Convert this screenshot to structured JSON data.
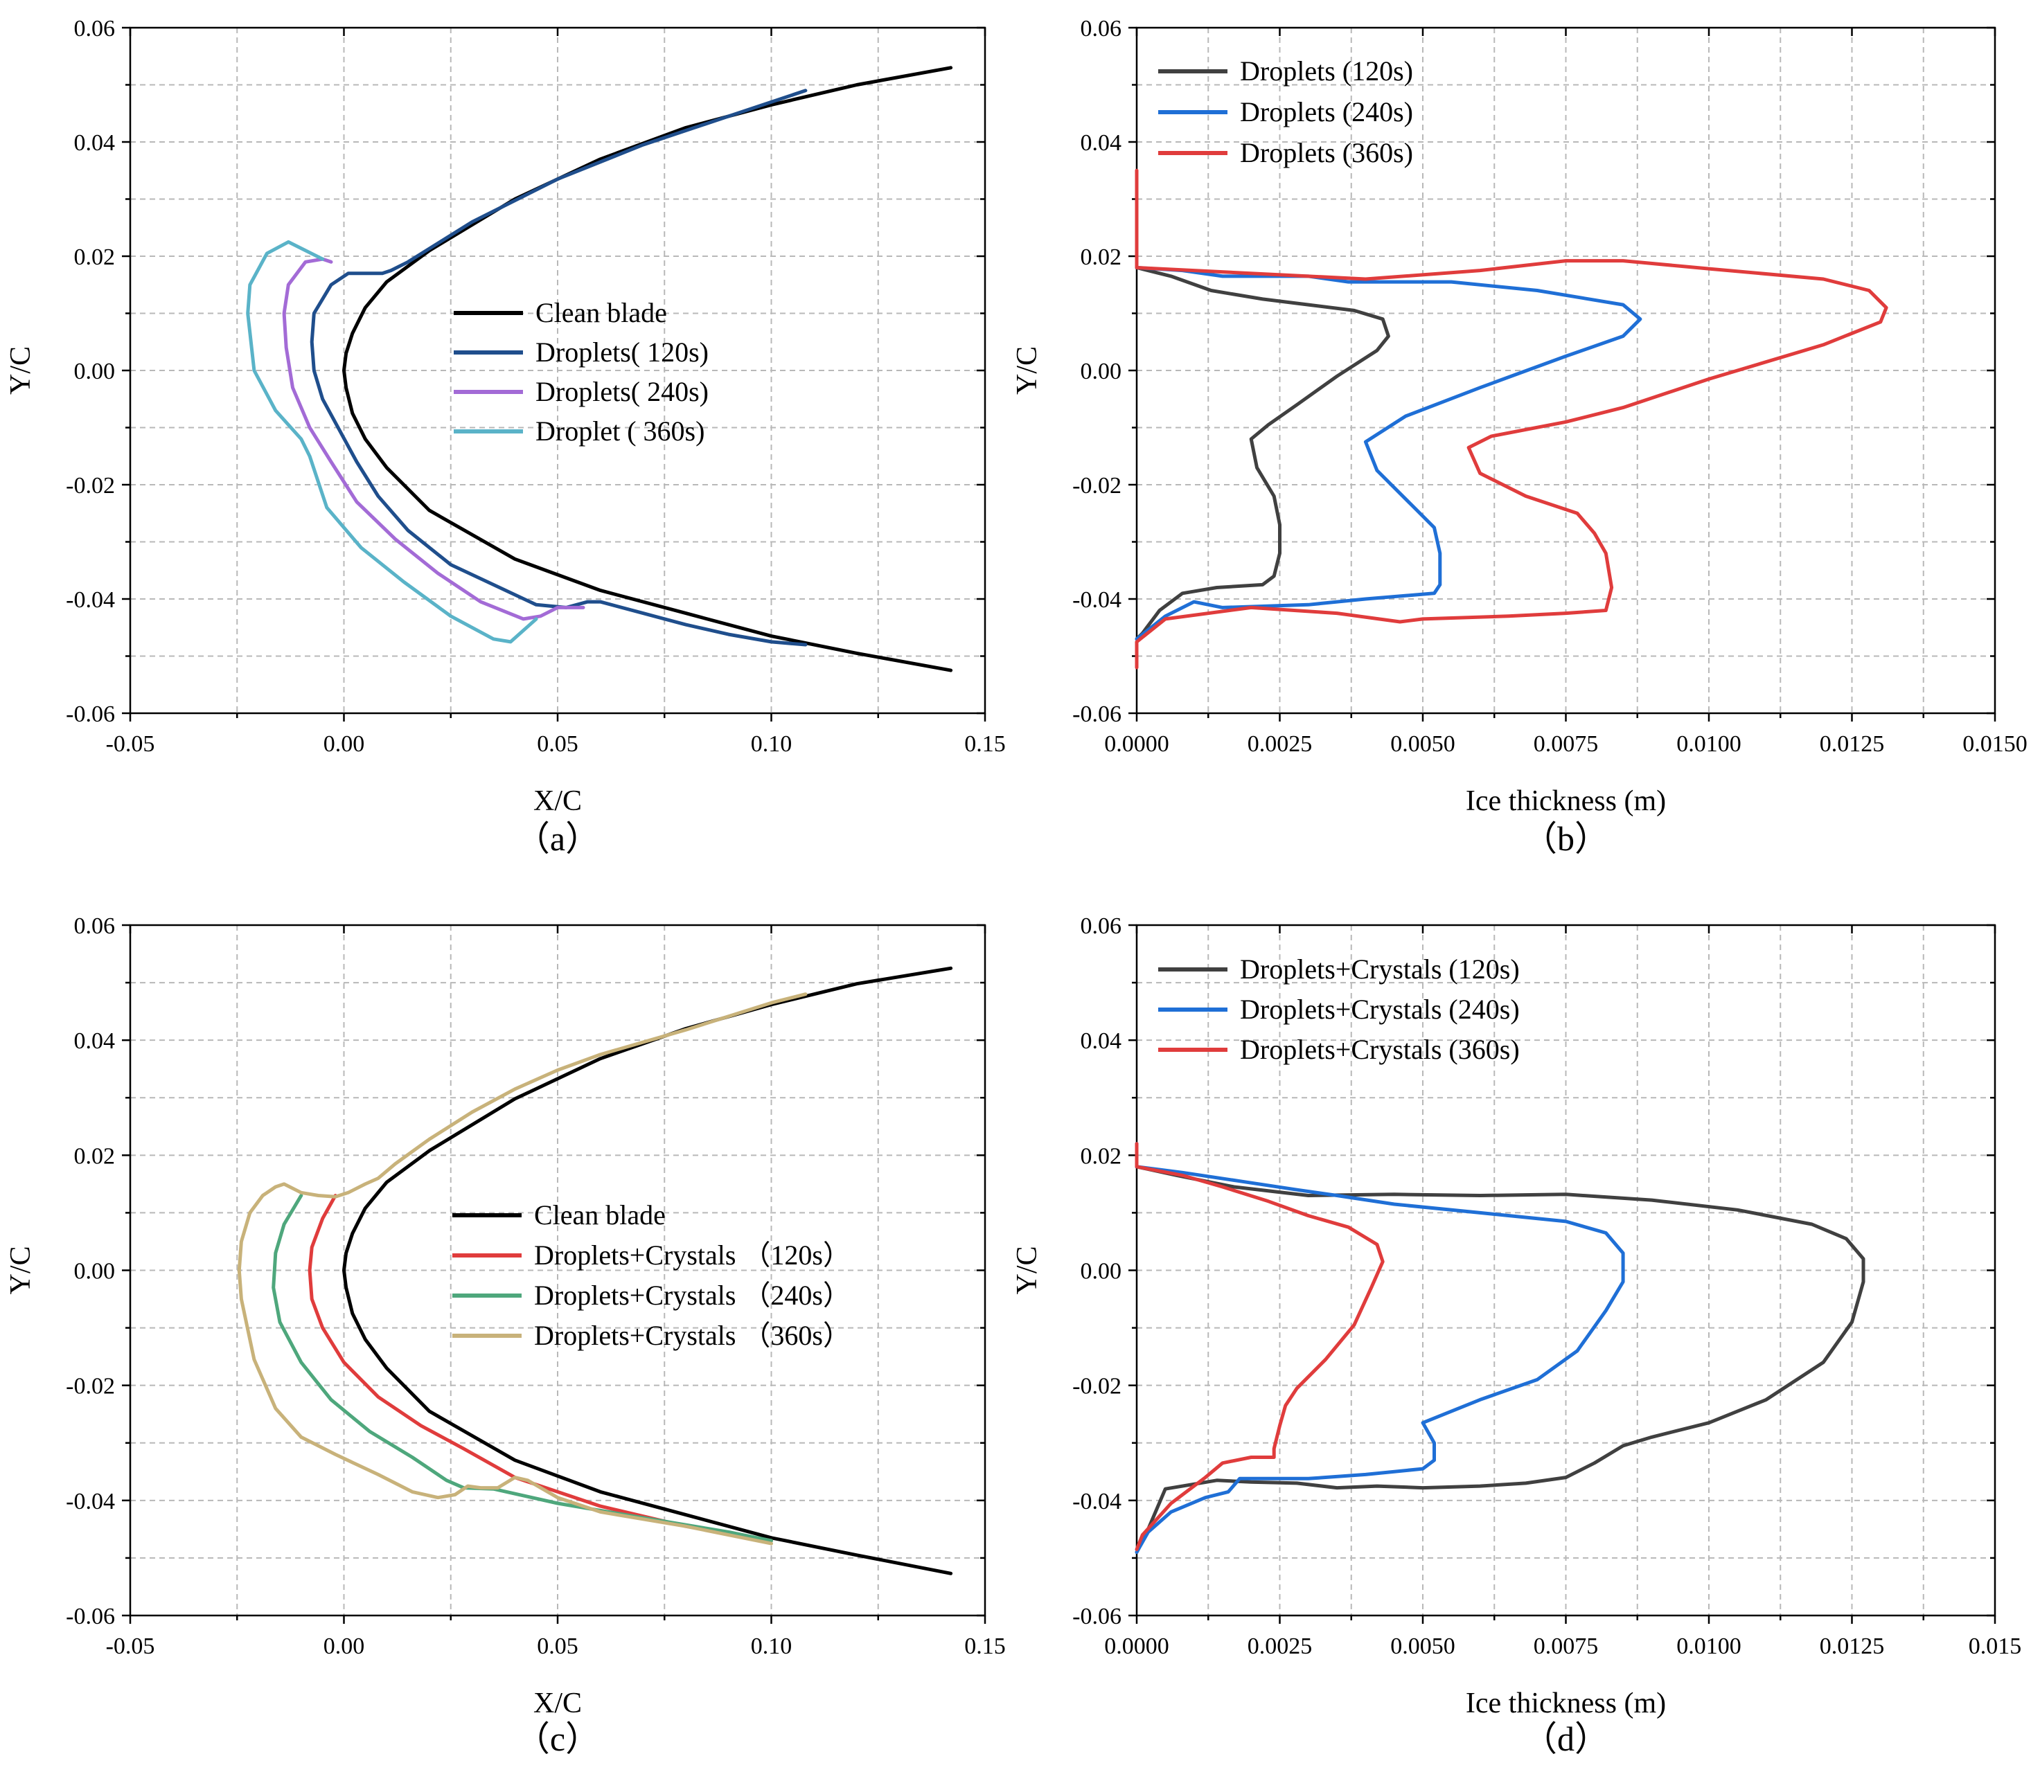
{
  "chart_data": [
    {
      "panel": "(a)",
      "type": "line",
      "xlabel": "X/C",
      "ylabel": "Y/C",
      "xlim": [
        -0.05,
        0.15
      ],
      "ylim": [
        -0.06,
        0.06
      ],
      "xticks": [
        -0.05,
        0.0,
        0.05,
        0.1,
        0.15
      ],
      "xtick_labels": [
        "-0.05",
        "0.00",
        "0.05",
        "0.10",
        "0.15"
      ],
      "yticks": [
        -0.06,
        -0.04,
        -0.02,
        0.0,
        0.02,
        0.04,
        0.06
      ],
      "ytick_labels": [
        "-0.06",
        "-0.04",
        "-0.02",
        "0.00",
        "0.02",
        "0.04",
        "0.06"
      ],
      "grid": true,
      "legend_position": "center",
      "series": [
        {
          "name": "Clean blade",
          "color": "#000000",
          "x": [
            0.142,
            0.12,
            0.1,
            0.08,
            0.06,
            0.04,
            0.02,
            0.01,
            0.005,
            0.002,
            0.0005,
            0.0,
            0.0005,
            0.002,
            0.005,
            0.01,
            0.02,
            0.04,
            0.06,
            0.08,
            0.1,
            0.12,
            0.142
          ],
          "y": [
            0.053,
            0.05,
            0.0465,
            0.0425,
            0.037,
            0.03,
            0.021,
            0.0155,
            0.011,
            0.0065,
            0.003,
            0.0,
            -0.003,
            -0.0075,
            -0.012,
            -0.017,
            -0.0245,
            -0.033,
            -0.0385,
            -0.0425,
            -0.0465,
            -0.0495,
            -0.0525
          ]
        },
        {
          "name": "Droplets(   120s)",
          "color": "#1f4e8c",
          "x": [
            0.108,
            0.09,
            0.07,
            0.05,
            0.03,
            0.015,
            0.011,
            0.009,
            0.005,
            0.001,
            -0.003,
            -0.007,
            -0.0075,
            -0.007,
            -0.005,
            -0.001,
            0.003,
            0.008,
            0.015,
            0.025,
            0.035,
            0.045,
            0.052,
            0.057,
            0.06,
            0.07,
            0.08,
            0.09,
            0.1,
            0.108
          ],
          "y": [
            0.049,
            0.0445,
            0.0395,
            0.0335,
            0.026,
            0.019,
            0.0175,
            0.017,
            0.017,
            0.017,
            0.015,
            0.01,
            0.005,
            0.0,
            -0.005,
            -0.0105,
            -0.016,
            -0.022,
            -0.028,
            -0.034,
            -0.0375,
            -0.041,
            -0.0415,
            -0.0405,
            -0.0405,
            -0.0425,
            -0.0445,
            -0.0462,
            -0.0475,
            -0.048
          ]
        },
        {
          "name": "Droplets(   240s)",
          "color": "#a36bd6",
          "x": [
            -0.003,
            -0.005,
            -0.009,
            -0.013,
            -0.014,
            -0.0135,
            -0.012,
            -0.008,
            -0.003,
            0.003,
            0.012,
            0.022,
            0.032,
            0.042,
            0.046,
            0.05,
            0.056
          ],
          "y": [
            0.019,
            0.0195,
            0.019,
            0.015,
            0.01,
            0.004,
            -0.003,
            -0.01,
            -0.016,
            -0.023,
            -0.0295,
            -0.0355,
            -0.0405,
            -0.0435,
            -0.043,
            -0.0415,
            -0.0415
          ]
        },
        {
          "name": "Droplet (   360s)",
          "color": "#5ab3c8",
          "x": [
            -0.005,
            -0.009,
            -0.013,
            -0.018,
            -0.022,
            -0.0225,
            -0.021,
            -0.016,
            -0.01,
            -0.008,
            -0.004,
            0.004,
            0.014,
            0.025,
            0.035,
            0.039,
            0.042,
            0.045
          ],
          "y": [
            0.0195,
            0.021,
            0.0225,
            0.0205,
            0.015,
            0.01,
            0.0,
            -0.007,
            -0.012,
            -0.015,
            -0.024,
            -0.031,
            -0.037,
            -0.043,
            -0.047,
            -0.0475,
            -0.0455,
            -0.0435
          ]
        }
      ]
    },
    {
      "panel": "(b)",
      "type": "line",
      "xlabel": "Ice thickness (m)",
      "ylabel": "Y/C",
      "xlim": [
        0.0,
        0.015
      ],
      "ylim": [
        -0.06,
        0.06
      ],
      "xticks": [
        0.0,
        0.0025,
        0.005,
        0.0075,
        0.01,
        0.0125,
        0.015
      ],
      "xtick_labels": [
        "0.0000",
        "0.0025",
        "0.0050",
        "0.0075",
        "0.0100",
        "0.0125",
        "0.0150"
      ],
      "yticks": [
        -0.06,
        -0.04,
        -0.02,
        0.0,
        0.02,
        0.04,
        0.06
      ],
      "ytick_labels": [
        "-0.06",
        "-0.04",
        "-0.02",
        "0.00",
        "0.02",
        "0.04",
        "0.06"
      ],
      "grid": true,
      "legend_position": "top-left",
      "series": [
        {
          "name": "Droplets (120s)",
          "color": "#404040",
          "x": [
            0.0,
            0.0,
            0.0006,
            0.0013,
            0.0022,
            0.003,
            0.0038,
            0.0043,
            0.0044,
            0.0042,
            0.0035,
            0.0028,
            0.0023,
            0.002,
            0.0021,
            0.0024,
            0.0025,
            0.0025,
            0.0024,
            0.0022,
            0.0014,
            0.0008,
            0.0004,
            0.0001,
            0.0
          ],
          "y": [
            0.024,
            0.018,
            0.0165,
            0.014,
            0.0125,
            0.0115,
            0.0105,
            0.009,
            0.006,
            0.0035,
            -0.001,
            -0.006,
            -0.0095,
            -0.012,
            -0.017,
            -0.022,
            -0.027,
            -0.032,
            -0.036,
            -0.0375,
            -0.038,
            -0.039,
            -0.042,
            -0.046,
            -0.047
          ]
        },
        {
          "name": "Droplets (240s)",
          "color": "#1f6fd6",
          "x": [
            0.0,
            0.0,
            0.0008,
            0.0015,
            0.003,
            0.0037,
            0.0055,
            0.007,
            0.0085,
            0.0088,
            0.0085,
            0.0075,
            0.006,
            0.0047,
            0.004,
            0.0042,
            0.0048,
            0.0052,
            0.0053,
            0.0053,
            0.0052,
            0.004,
            0.003,
            0.0015,
            0.001,
            0.0005,
            0.0
          ],
          "y": [
            0.024,
            0.018,
            0.0175,
            0.0165,
            0.0165,
            0.0155,
            0.0155,
            0.014,
            0.0115,
            0.009,
            0.006,
            0.0025,
            -0.003,
            -0.008,
            -0.0125,
            -0.0175,
            -0.0235,
            -0.0275,
            -0.032,
            -0.0375,
            -0.039,
            -0.04,
            -0.041,
            -0.0415,
            -0.0405,
            -0.043,
            -0.047
          ]
        },
        {
          "name": "Droplets (360s)",
          "color": "#e03c3c",
          "x": [
            0.0,
            0.0,
            0.004,
            0.006,
            0.0075,
            0.0085,
            0.01,
            0.012,
            0.0128,
            0.0131,
            0.013,
            0.012,
            0.01,
            0.0085,
            0.0075,
            0.0062,
            0.0058,
            0.006,
            0.0068,
            0.0077,
            0.008,
            0.0082,
            0.0083,
            0.0082,
            0.0075,
            0.0065,
            0.005,
            0.0046,
            0.0035,
            0.002,
            0.0005,
            0.0,
            0.0
          ],
          "y": [
            0.035,
            0.018,
            0.016,
            0.0175,
            0.0192,
            0.0192,
            0.0178,
            0.016,
            0.014,
            0.011,
            0.0085,
            0.0045,
            -0.0015,
            -0.0065,
            -0.009,
            -0.0115,
            -0.0135,
            -0.018,
            -0.022,
            -0.025,
            -0.0285,
            -0.032,
            -0.038,
            -0.042,
            -0.0425,
            -0.043,
            -0.0435,
            -0.044,
            -0.0425,
            -0.0415,
            -0.0435,
            -0.0475,
            -0.052
          ]
        }
      ]
    },
    {
      "panel": "(c)",
      "type": "line",
      "xlabel": "X/C",
      "ylabel": "Y/C",
      "xlim": [
        -0.05,
        0.15
      ],
      "ylim": [
        -0.06,
        0.06
      ],
      "xticks": [
        -0.05,
        0.0,
        0.05,
        0.1,
        0.15
      ],
      "xtick_labels": [
        "-0.05",
        "0.00",
        "0.05",
        "0.10",
        "0.15"
      ],
      "yticks": [
        -0.06,
        -0.04,
        -0.02,
        0.0,
        0.02,
        0.04,
        0.06
      ],
      "ytick_labels": [
        "-0.06",
        "-0.04",
        "-0.02",
        "0.00",
        "0.02",
        "0.04",
        "0.06"
      ],
      "grid": true,
      "legend_position": "center",
      "series": [
        {
          "name": "Clean blade",
          "color": "#000000",
          "x": [
            0.142,
            0.12,
            0.1,
            0.08,
            0.06,
            0.04,
            0.02,
            0.01,
            0.005,
            0.002,
            0.0005,
            0.0,
            0.0005,
            0.002,
            0.005,
            0.01,
            0.02,
            0.04,
            0.06,
            0.08,
            0.1,
            0.12,
            0.142
          ],
          "y": [
            0.0525,
            0.0498,
            0.0462,
            0.042,
            0.0368,
            0.0298,
            0.0208,
            0.0153,
            0.0108,
            0.0064,
            0.003,
            0.0,
            -0.003,
            -0.0075,
            -0.012,
            -0.017,
            -0.0245,
            -0.033,
            -0.0385,
            -0.0425,
            -0.0465,
            -0.0495,
            -0.0527
          ]
        },
        {
          "name": "Droplets+Crystals  （120s）",
          "color": "#e03c3c",
          "x": [
            -0.002,
            -0.005,
            -0.0075,
            -0.008,
            -0.0075,
            -0.005,
            0.0,
            0.008,
            0.018,
            0.028,
            0.04,
            0.06,
            0.08,
            0.1
          ],
          "y": [
            0.013,
            0.009,
            0.004,
            0.0,
            -0.005,
            -0.01,
            -0.016,
            -0.022,
            -0.027,
            -0.031,
            -0.036,
            -0.041,
            -0.0445,
            -0.047
          ]
        },
        {
          "name": "Droplets+Crystals  （240s）",
          "color": "#4ea77c",
          "x": [
            -0.01,
            -0.014,
            -0.016,
            -0.0165,
            -0.015,
            -0.01,
            -0.003,
            0.006,
            0.016,
            0.024,
            0.028,
            0.035,
            0.05,
            0.07,
            0.09,
            0.1
          ],
          "y": [
            0.013,
            0.008,
            0.003,
            -0.003,
            -0.009,
            -0.016,
            -0.0225,
            -0.028,
            -0.0325,
            -0.0365,
            -0.0378,
            -0.038,
            -0.0405,
            -0.043,
            -0.0455,
            -0.047
          ]
        },
        {
          "name": "Droplets+Crystals  （360s）",
          "color": "#c8b27a",
          "x": [
            0.108,
            0.1,
            0.08,
            0.06,
            0.05,
            0.04,
            0.03,
            0.02,
            0.012,
            0.008,
            0.005,
            0.001,
            -0.002,
            -0.006,
            -0.01,
            -0.014,
            -0.016,
            -0.019,
            -0.022,
            -0.024,
            -0.0245,
            -0.024,
            -0.021,
            -0.016,
            -0.01,
            -0.002,
            0.008,
            0.016,
            0.022,
            0.026,
            0.029,
            0.032,
            0.036,
            0.04,
            0.043,
            0.05,
            0.06,
            0.08,
            0.1
          ],
          "y": [
            0.048,
            0.0465,
            0.0418,
            0.0375,
            0.0348,
            0.0315,
            0.0275,
            0.0228,
            0.0185,
            0.016,
            0.015,
            0.0135,
            0.0128,
            0.013,
            0.0135,
            0.015,
            0.0145,
            0.013,
            0.01,
            0.005,
            0.0,
            -0.005,
            -0.0155,
            -0.024,
            -0.029,
            -0.032,
            -0.0355,
            -0.0385,
            -0.0395,
            -0.039,
            -0.0375,
            -0.0378,
            -0.0378,
            -0.036,
            -0.0365,
            -0.0395,
            -0.042,
            -0.0445,
            -0.0475
          ]
        }
      ]
    },
    {
      "panel": "(d)",
      "type": "line",
      "xlabel": "Ice thickness (m)",
      "ylabel": "Y/C",
      "xlim": [
        0.0,
        0.015
      ],
      "ylim": [
        -0.06,
        0.06
      ],
      "xticks": [
        0.0,
        0.0025,
        0.005,
        0.0075,
        0.01,
        0.0125,
        0.015
      ],
      "xtick_labels": [
        "0.0000",
        "0.0025",
        "0.0050",
        "0.0075",
        "0.0100",
        "0.0125",
        "0.015"
      ],
      "yticks": [
        -0.06,
        -0.04,
        -0.02,
        0.0,
        0.02,
        0.04,
        0.06
      ],
      "ytick_labels": [
        "-0.06",
        "-0.04",
        "-0.02",
        "0.00",
        "0.02",
        "0.04",
        "0.06"
      ],
      "grid": true,
      "legend_position": "top-left",
      "series": [
        {
          "name": "Droplets+Crystals (120s)",
          "color": "#404040",
          "x": [
            0.0,
            0.0,
            0.0007,
            0.0017,
            0.003,
            0.0045,
            0.006,
            0.0075,
            0.009,
            0.0105,
            0.0118,
            0.0124,
            0.0127,
            0.0127,
            0.0125,
            0.012,
            0.011,
            0.01,
            0.009,
            0.0085,
            0.008,
            0.0075,
            0.0068,
            0.006,
            0.005,
            0.0042,
            0.0035,
            0.0028,
            0.002,
            0.0014,
            0.0005,
            0.0002,
            0.0
          ],
          "y": [
            0.02,
            0.018,
            0.0165,
            0.0145,
            0.013,
            0.0132,
            0.013,
            0.0132,
            0.0122,
            0.0105,
            0.008,
            0.0055,
            0.002,
            -0.002,
            -0.009,
            -0.016,
            -0.0225,
            -0.0265,
            -0.029,
            -0.0305,
            -0.0335,
            -0.036,
            -0.037,
            -0.0375,
            -0.0378,
            -0.0375,
            -0.0378,
            -0.037,
            -0.0368,
            -0.0365,
            -0.038,
            -0.045,
            -0.049
          ]
        },
        {
          "name": "Droplets+Crystals (240s)",
          "color": "#1f6fd6",
          "x": [
            0.0,
            0.0,
            0.0008,
            0.0018,
            0.0028,
            0.0035,
            0.0045,
            0.006,
            0.0075,
            0.0082,
            0.0085,
            0.0085,
            0.0082,
            0.0077,
            0.007,
            0.006,
            0.005,
            0.0052,
            0.0052,
            0.005,
            0.004,
            0.003,
            0.0018,
            0.0016,
            0.0012,
            0.0006,
            0.0002,
            0.0
          ],
          "y": [
            0.022,
            0.018,
            0.017,
            0.0155,
            0.014,
            0.013,
            0.0115,
            0.01,
            0.0085,
            0.0065,
            0.003,
            -0.002,
            -0.007,
            -0.014,
            -0.019,
            -0.0225,
            -0.0265,
            -0.03,
            -0.033,
            -0.0345,
            -0.0355,
            -0.0362,
            -0.0362,
            -0.0385,
            -0.0395,
            -0.042,
            -0.0455,
            -0.049
          ]
        },
        {
          "name": "Droplets+Crystals (360s)",
          "color": "#e03c3c",
          "x": [
            0.0,
            0.0,
            0.0008,
            0.0015,
            0.0023,
            0.003,
            0.0037,
            0.0042,
            0.0043,
            0.0041,
            0.0038,
            0.0033,
            0.0028,
            0.0026,
            0.0025,
            0.0024,
            0.0024,
            0.002,
            0.0015,
            0.0012,
            0.0006,
            0.0001,
            0.0
          ],
          "y": [
            0.022,
            0.018,
            0.0165,
            0.0145,
            0.012,
            0.0095,
            0.0075,
            0.0045,
            0.0015,
            -0.003,
            -0.0095,
            -0.0155,
            -0.0205,
            -0.0235,
            -0.027,
            -0.031,
            -0.0325,
            -0.0325,
            -0.0335,
            -0.036,
            -0.0405,
            -0.046,
            -0.0485
          ]
        }
      ]
    }
  ]
}
